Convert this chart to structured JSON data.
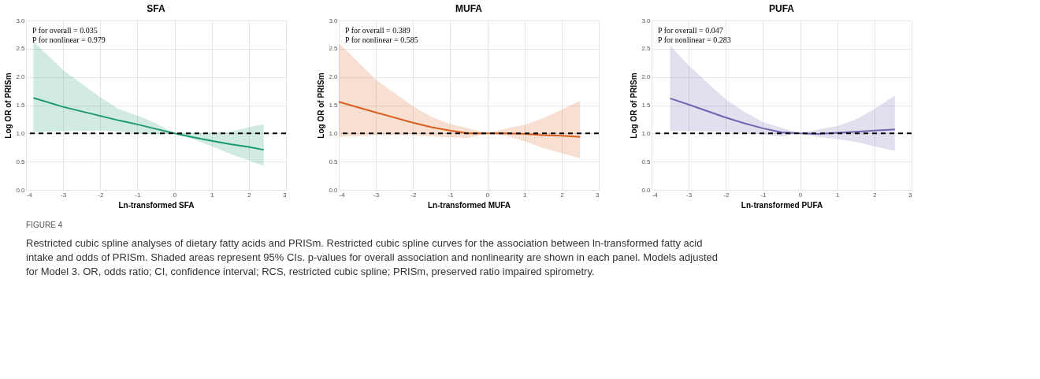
{
  "chart_data": [
    {
      "type": "line",
      "title": "SFA",
      "xlabel": "Ln-transformed SFA",
      "ylabel": "Log OR of PRISm",
      "xlim": [
        -4,
        3
      ],
      "ylim": [
        0,
        3
      ],
      "xticks": [
        -4,
        -3,
        -2,
        -1,
        0,
        1,
        2,
        3
      ],
      "yticks": [
        {
          "value": 0,
          "label": "0.0"
        },
        0.5,
        {
          "value": 1,
          "label": "1.0"
        },
        1.5,
        {
          "value": 2,
          "label": "2.0"
        },
        2.5,
        {
          "value": 3,
          "label": "3.0"
        }
      ],
      "grid": true,
      "line_style": "solid",
      "annotations": [
        "P for overall = 0.035",
        "P for nonlinear = 0.979",
        "FIGURE 4",
        "Restricted cubic spline analyses of dietary fatty acids and PRISm. Restricted cubic spline curves for the association between ln-transformed fatty acid",
        "intake and odds of PRISm. Shaded areas represent 95% CIs. p-values for overall association and nonlinearity are shown in each panel. Models adjusted",
        "for Model 3. OR, odds ratio; CI, confidence interval; RCS, restricted cubic spline; PRISm, preserved ratio impaired spirometry."
      ],
      "ref_lines": [
        {
          "axis": "y",
          "value": 1.0,
          "color": "#000000",
          "line_style": "dashed"
        }
      ],
      "series": [
        {
          "color": "#1a9a6c",
          "x": [
            -3.8,
            -3,
            -2,
            -1.5,
            -1,
            -0.5,
            0,
            0.5,
            1,
            1.5,
            2,
            2.4
          ],
          "values": [
            1.63,
            1.47,
            1.31,
            1.23,
            1.16,
            1.08,
            1.0,
            0.93,
            0.87,
            0.81,
            0.76,
            0.71
          ],
          "upper": [
            2.63,
            2.12,
            1.64,
            1.43,
            1.32,
            1.18,
            1.0,
            1.0,
            1.02,
            1.03,
            1.11,
            1.16
          ],
          "lower": [
            1.02,
            1.04,
            1.05,
            1.03,
            1.0,
            0.98,
            1.0,
            0.9,
            0.77,
            0.64,
            0.52,
            0.43
          ]
        }
      ]
    },
    {
      "type": "line",
      "title": "MUFA",
      "xlabel": "Ln-transformed MUFA",
      "ylabel": "Log OR of PRISm",
      "xlim": [
        -4,
        3
      ],
      "ylim": [
        0,
        3
      ],
      "xticks": [
        -4,
        -3,
        -2,
        -1,
        0,
        1,
        2,
        3
      ],
      "yticks": [
        {
          "value": 0,
          "label": "0.0"
        },
        0.5,
        {
          "value": 1,
          "label": "1.0"
        },
        1.5,
        {
          "value": 2,
          "label": "2.0"
        },
        2.5,
        {
          "value": 3,
          "label": "3.0"
        }
      ],
      "grid": true,
      "line_style": "solid",
      "annotations": [
        "P for overall = 0.389",
        "P for nonlinear = 0.585"
      ],
      "ref_lines": [
        {
          "axis": "y",
          "value": 1.0,
          "color": "#000000",
          "line_style": "dashed"
        }
      ],
      "series": [
        {
          "color": "#d95f1e",
          "x": [
            -4,
            -3,
            -2,
            -1.5,
            -1,
            -0.5,
            0,
            0.5,
            1,
            1.5,
            2,
            2.5
          ],
          "values": [
            1.56,
            1.37,
            1.19,
            1.11,
            1.05,
            1.0,
            1.0,
            1.0,
            0.99,
            0.97,
            0.96,
            0.94
          ],
          "upper": [
            2.6,
            1.95,
            1.48,
            1.29,
            1.17,
            1.09,
            1.0,
            1.09,
            1.15,
            1.27,
            1.42,
            1.58
          ],
          "lower": [
            0.94,
            0.97,
            0.97,
            0.95,
            0.93,
            0.92,
            1.0,
            0.96,
            0.86,
            0.74,
            0.65,
            0.56
          ]
        }
      ]
    },
    {
      "type": "line",
      "title": "PUFA",
      "xlabel": "Ln-transformed PUFA",
      "ylabel": "Log OR of PRISm",
      "xlim": [
        -4,
        3
      ],
      "ylim": [
        0,
        3
      ],
      "xticks": [
        -4,
        -3,
        -2,
        -1,
        0,
        1,
        2,
        3
      ],
      "yticks": [
        {
          "value": 0,
          "label": "0.0"
        },
        0.5,
        {
          "value": 1,
          "label": "1.0"
        },
        1.5,
        {
          "value": 2,
          "label": "2.0"
        },
        2.5,
        {
          "value": 3,
          "label": "3.0"
        }
      ],
      "grid": true,
      "line_style": "solid",
      "annotations": [
        "P for overall = 0.047",
        "P for nonlinear = 0.283"
      ],
      "ref_lines": [
        {
          "axis": "y",
          "value": 1.0,
          "color": "#000000",
          "line_style": "dashed"
        }
      ],
      "series": [
        {
          "color": "#7065b0",
          "x": [
            -3.5,
            -3,
            -2,
            -1.5,
            -1,
            -0.5,
            0,
            0.5,
            1,
            1.5,
            2,
            2.55
          ],
          "values": [
            1.62,
            1.51,
            1.28,
            1.18,
            1.09,
            1.02,
            1.0,
            0.99,
            1.01,
            1.03,
            1.05,
            1.07
          ],
          "upper": [
            2.56,
            2.2,
            1.6,
            1.38,
            1.2,
            1.1,
            1.0,
            1.07,
            1.13,
            1.25,
            1.43,
            1.67
          ],
          "lower": [
            1.04,
            1.04,
            1.03,
            1.01,
            0.98,
            0.95,
            1.0,
            0.94,
            0.9,
            0.85,
            0.77,
            0.69
          ]
        }
      ]
    }
  ]
}
